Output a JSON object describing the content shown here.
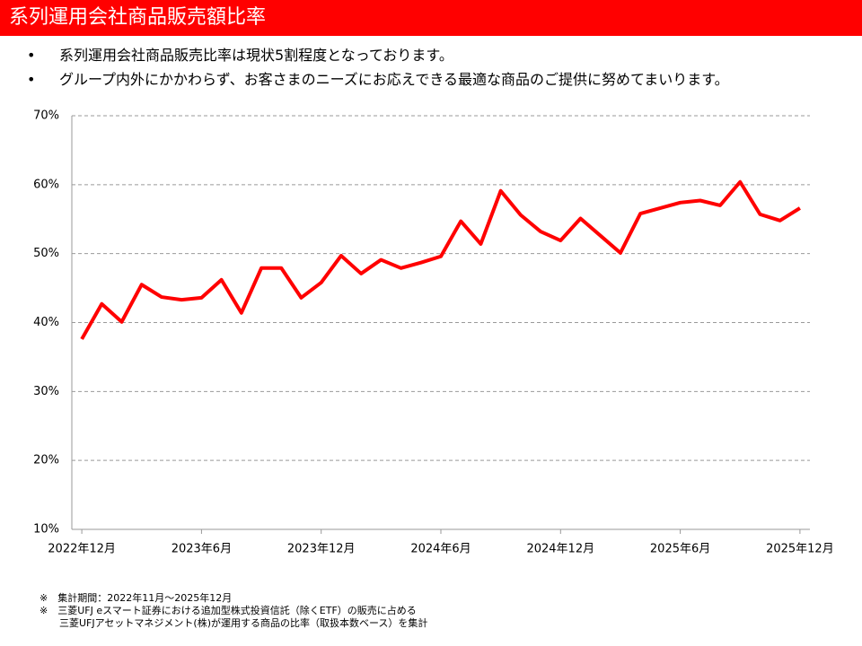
{
  "header": {
    "title": "系列運用会社商品販売額比率"
  },
  "bullets": [
    "系列運用会社商品販売比率は現状5割程度となっております。",
    "グループ内外にかかわらず、お客さまのニーズにお応えできる最適な商品のご提供に努めてまいります。"
  ],
  "notes": [
    "※　集計期間：2022年11月～2025年12月",
    "※　三菱UFJ eスマート証券における追加型株式投資信託（除くETF）の販売に占める",
    "　　三菱UFJアセットマネジメント(株)が運用する商品の比率（取扱本数ベース）を集計"
  ],
  "chart_data": {
    "type": "line",
    "categories": [
      "2022年12月",
      null,
      null,
      null,
      null,
      null,
      "2023年6月",
      null,
      null,
      null,
      null,
      null,
      "2023年12月",
      null,
      null,
      null,
      null,
      null,
      "2024年6月",
      null,
      null,
      null,
      null,
      null,
      "2024年12月",
      null,
      null,
      null,
      null,
      null,
      "2025年6月",
      null,
      null,
      null,
      null,
      null,
      "2025年12月"
    ],
    "values": [
      37.6,
      42.7,
      40.1,
      45.5,
      43.7,
      43.3,
      43.6,
      46.2,
      41.4,
      47.9,
      47.9,
      43.6,
      45.8,
      49.7,
      47.1,
      49.1,
      47.9,
      48.7,
      49.6,
      54.7,
      51.4,
      59.1,
      55.6,
      53.2,
      51.9,
      55.1,
      52.6,
      50.1,
      55.8,
      56.6,
      57.4,
      57.7,
      57.0,
      60.4,
      55.7,
      54.8,
      56.6
    ],
    "color": "#ff0000",
    "ylim": [
      10,
      70
    ],
    "yticks": [
      {
        "value": 10,
        "label": "10%"
      },
      {
        "value": 20,
        "label": "20%"
      },
      {
        "value": 30,
        "label": "30%"
      },
      {
        "value": 40,
        "label": "40%"
      },
      {
        "value": 50,
        "label": "50%"
      },
      {
        "value": 60,
        "label": "60%"
      },
      {
        "value": 70,
        "label": "70%"
      }
    ],
    "grid": true
  }
}
